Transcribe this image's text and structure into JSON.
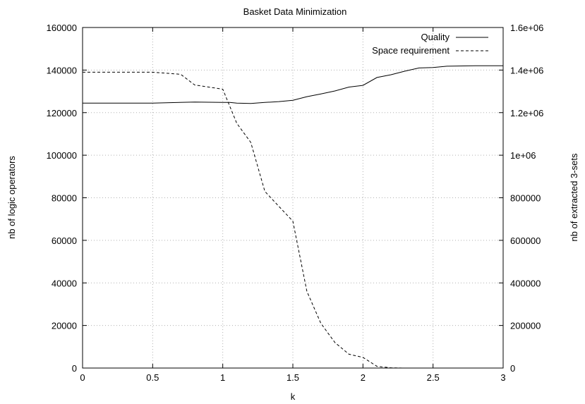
{
  "chart_data": {
    "type": "line",
    "title": "Basket Data Minimization",
    "xlabel": "k",
    "ylabel": "nb of logic operators",
    "y2label": "nb of extracted 3-sets",
    "xlim": [
      0,
      3
    ],
    "ylim": [
      0,
      160000
    ],
    "y2lim": [
      0,
      1600000
    ],
    "x_ticks": [
      0,
      0.5,
      1,
      1.5,
      2,
      2.5,
      3
    ],
    "x_tick_labels": [
      "0",
      "0.5",
      "1",
      "1.5",
      "2",
      "2.5",
      "3"
    ],
    "y_ticks": [
      0,
      20000,
      40000,
      60000,
      80000,
      100000,
      120000,
      140000,
      160000
    ],
    "y_tick_labels": [
      "0",
      "20000",
      "40000",
      "60000",
      "80000",
      "100000",
      "120000",
      "140000",
      "160000"
    ],
    "y2_ticks": [
      0,
      200000,
      400000,
      600000,
      800000,
      1000000,
      1200000,
      1400000,
      1600000
    ],
    "y2_tick_labels": [
      "0",
      "200000",
      "400000",
      "600000",
      "800000",
      "1e+06",
      "1.2e+06",
      "1.4e+06",
      "1.6e+06"
    ],
    "grid": true,
    "legend_position": "top-right",
    "series": [
      {
        "name": "Quality",
        "axis": "left",
        "style": "solid",
        "x": [
          0,
          0.5,
          0.8,
          1.0,
          1.05,
          1.1,
          1.2,
          1.3,
          1.4,
          1.5,
          1.6,
          1.7,
          1.8,
          1.9,
          2.0,
          2.1,
          2.2,
          2.3,
          2.4,
          2.5,
          2.6,
          2.8,
          3.0
        ],
        "values": [
          124500,
          124500,
          125000,
          124800,
          124800,
          124500,
          124300,
          124800,
          125200,
          125800,
          127500,
          128800,
          130200,
          132000,
          132800,
          136500,
          137800,
          139500,
          141000,
          141200,
          141800,
          142000,
          142000
        ]
      },
      {
        "name": "Space requirement",
        "axis": "right",
        "style": "dashed",
        "x": [
          0,
          0.5,
          0.7,
          0.8,
          0.9,
          1.0,
          1.1,
          1.2,
          1.3,
          1.4,
          1.5,
          1.6,
          1.7,
          1.8,
          1.9,
          2.0,
          2.1,
          2.2,
          2.3,
          2.5,
          3.0
        ],
        "values": [
          1390000,
          1390000,
          1380000,
          1330000,
          1320000,
          1310000,
          1150000,
          1060000,
          830000,
          760000,
          690000,
          360000,
          210000,
          120000,
          65000,
          50000,
          8000,
          1000,
          0,
          0,
          0
        ]
      }
    ]
  }
}
